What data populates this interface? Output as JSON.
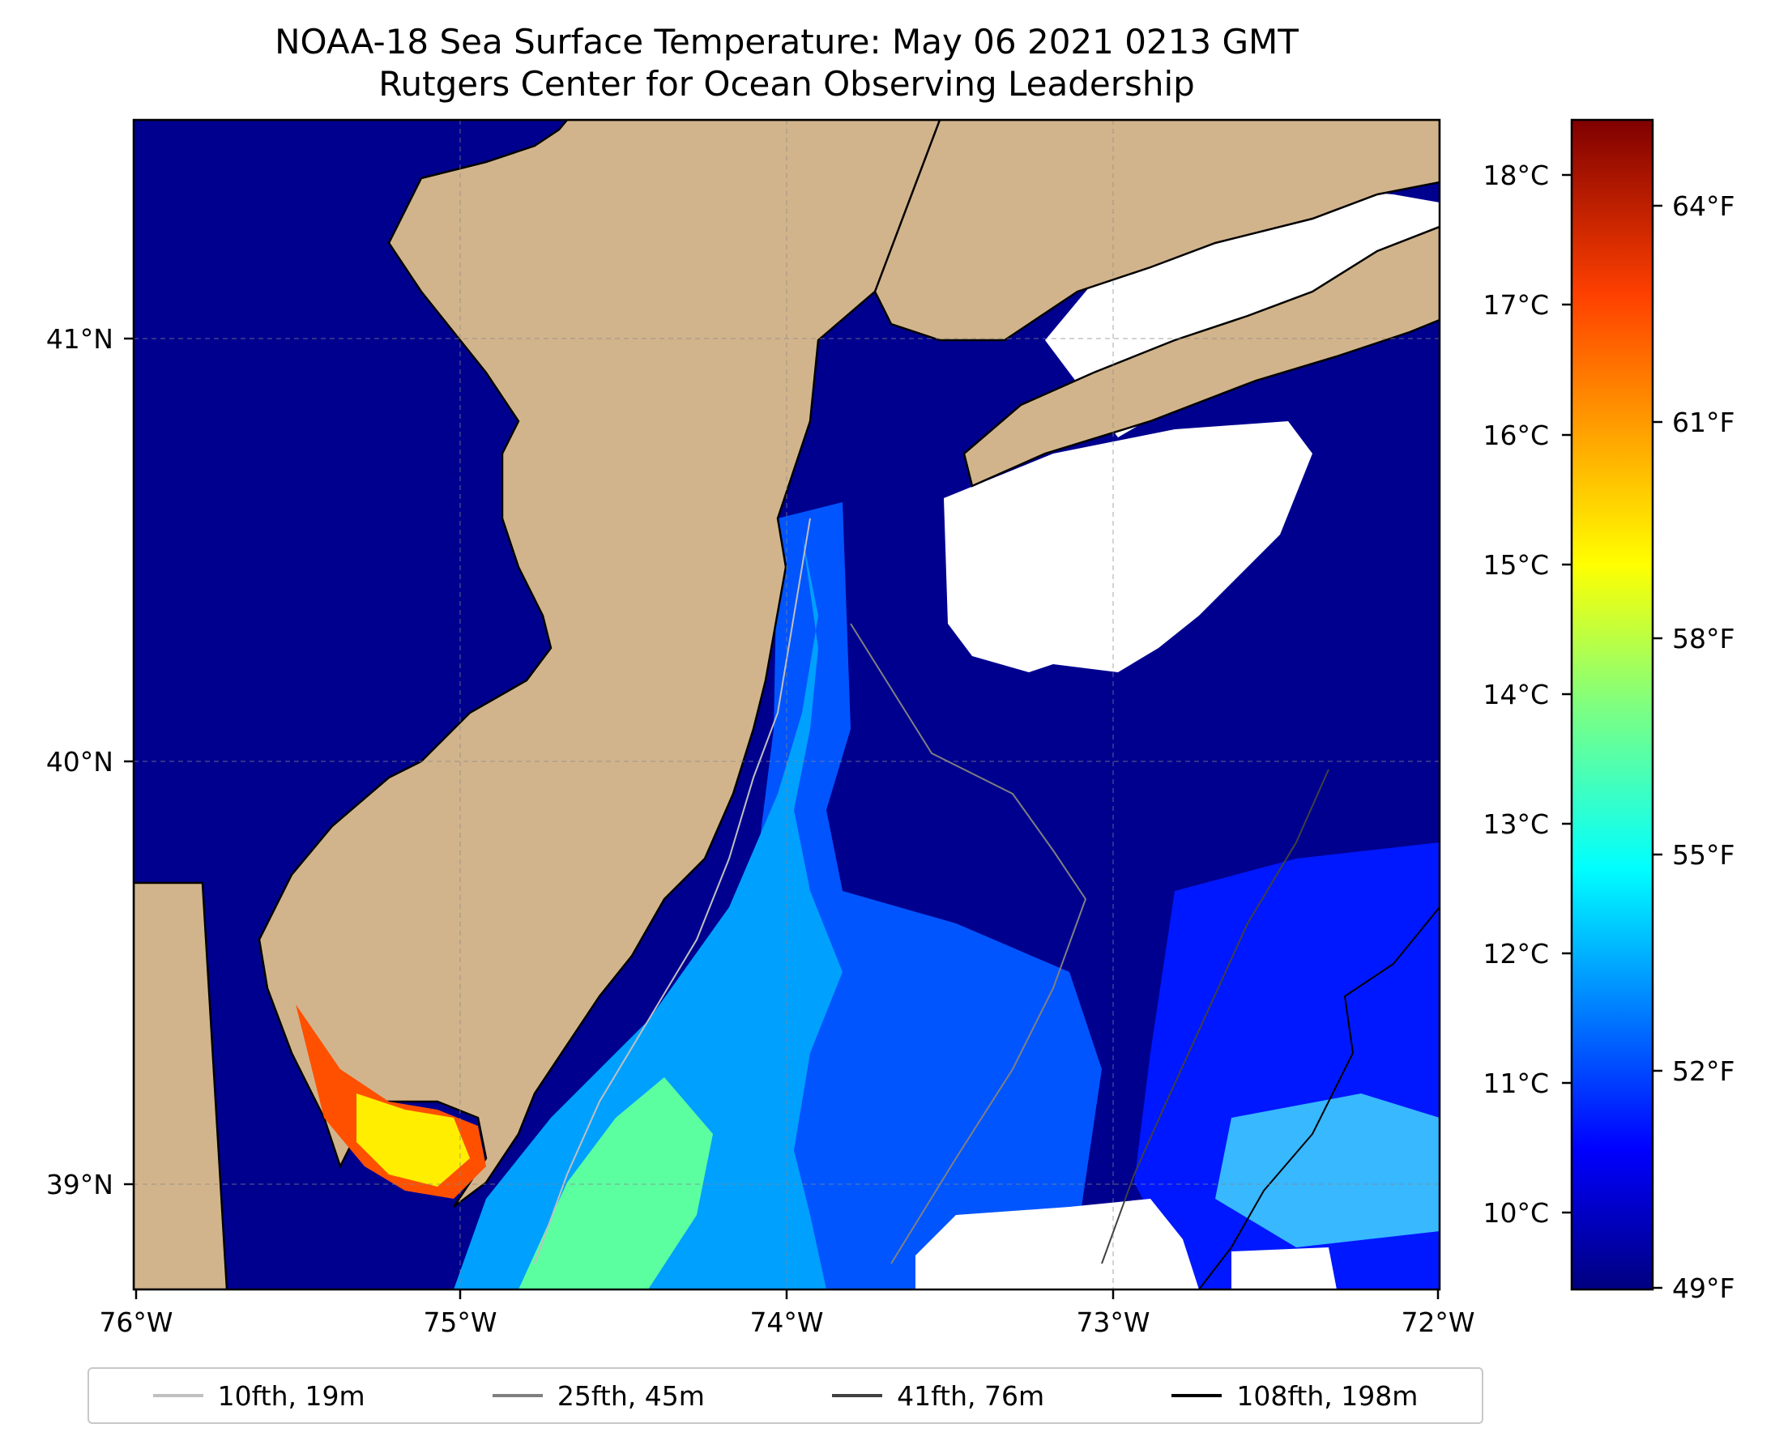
{
  "title": {
    "line1": "NOAA-18 Sea Surface Temperature: May 06 2021 0213 GMT",
    "line2": "Rutgers Center for Ocean Observing Leadership"
  },
  "map": {
    "lon_range": [
      -76,
      -72
    ],
    "lat_range": [
      38.75,
      41.52
    ],
    "lon_ticks": [
      "76°W",
      "75°W",
      "74°W",
      "73°W",
      "72°W"
    ],
    "lat_ticks": [
      "41°N",
      "40°N",
      "39°N"
    ],
    "gridlines": true,
    "land_color": "#d2b48c",
    "cloud_mask_color": "#ffffff"
  },
  "colorbar": {
    "celsius_ticks": [
      "18°C",
      "17°C",
      "16°C",
      "15°C",
      "14°C",
      "13°C",
      "12°C",
      "11°C",
      "10°C"
    ],
    "fahrenheit_ticks": [
      "64°F",
      "61°F",
      "58°F",
      "55°F",
      "52°F",
      "49°F"
    ],
    "colormap": "jet",
    "colors": [
      "#00007f",
      "#0000ff",
      "#007fff",
      "#00ffff",
      "#7fff7f",
      "#ffff00",
      "#ff7f00",
      "#ff0000",
      "#7f0000"
    ]
  },
  "legend": {
    "items": [
      {
        "label": "10fth, 19m",
        "color": "#c0c0c0"
      },
      {
        "label": "25fth, 45m",
        "color": "#808080"
      },
      {
        "label": "41fth, 76m",
        "color": "#404040"
      },
      {
        "label": "108fth, 198m",
        "color": "#000000"
      }
    ]
  }
}
